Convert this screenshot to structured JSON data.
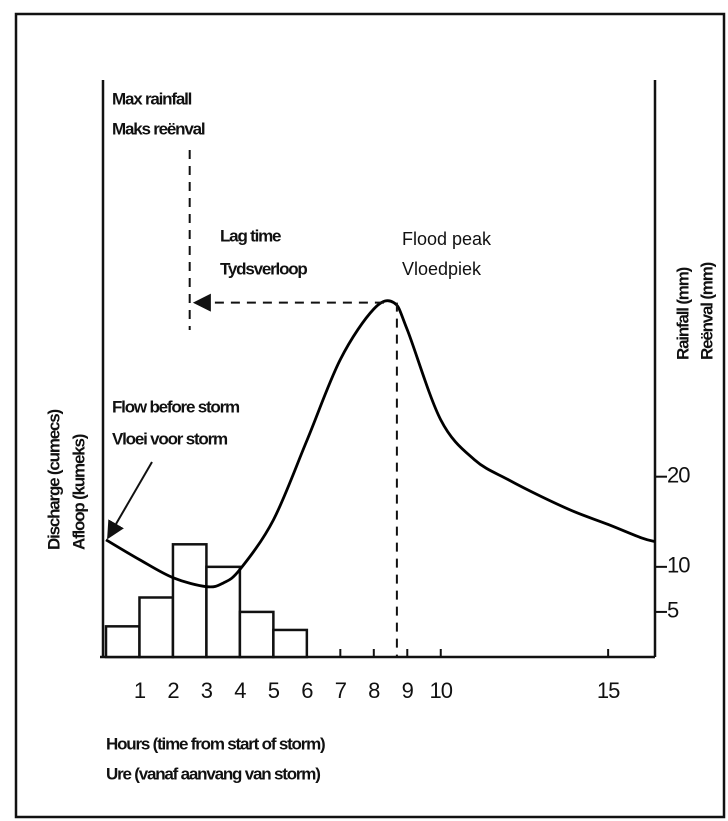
{
  "chart_data": [
    {
      "type": "line",
      "x": [
        0,
        1,
        2,
        3,
        3.5,
        4,
        5,
        6,
        7,
        8,
        8.6,
        9,
        10,
        11,
        12,
        13,
        14,
        15,
        16,
        16.4
      ],
      "values": [
        13,
        10.8,
        8.8,
        7.8,
        8.2,
        9.7,
        15.2,
        24,
        33,
        38.6,
        39.3,
        36.3,
        26.3,
        21.9,
        19.7,
        17.8,
        16.1,
        14.7,
        13.2,
        12.8
      ],
      "color": "#000000",
      "xlim": [
        0,
        16.4
      ],
      "ylim": [
        0,
        64
      ],
      "xticks": [
        1,
        2,
        3,
        4,
        5,
        6,
        7,
        8,
        9,
        10,
        15
      ],
      "xlabel": [
        "Hours (time from start of storm)",
        "Ure (vanaf aanvang van storm)"
      ],
      "ylabel": [
        "Discharge (cumecs)",
        "Afloop (kumeks)"
      ],
      "annotations": {
        "max_rainfall": [
          "Max rainfall",
          "Maks reënval"
        ],
        "lag_time": [
          "Lag time",
          "Tydsverloop"
        ],
        "flood_peak": [
          "Flood peak",
          "Vloedpiek"
        ],
        "flow_before_storm": [
          "Flow before storm",
          "Vloei voor storm"
        ]
      }
    },
    {
      "type": "histogram",
      "bins": [
        0,
        1,
        2,
        3,
        4,
        5,
        6
      ],
      "values": [
        3.4,
        6.6,
        12.5,
        10,
        5,
        3
      ],
      "color": "#ffffff",
      "axis": "y2",
      "y2lim": [
        0,
        64
      ],
      "y2ticks": [
        5,
        10,
        20
      ],
      "y2label": [
        "Rainfall (mm)",
        "Reënval (mm)"
      ]
    }
  ]
}
